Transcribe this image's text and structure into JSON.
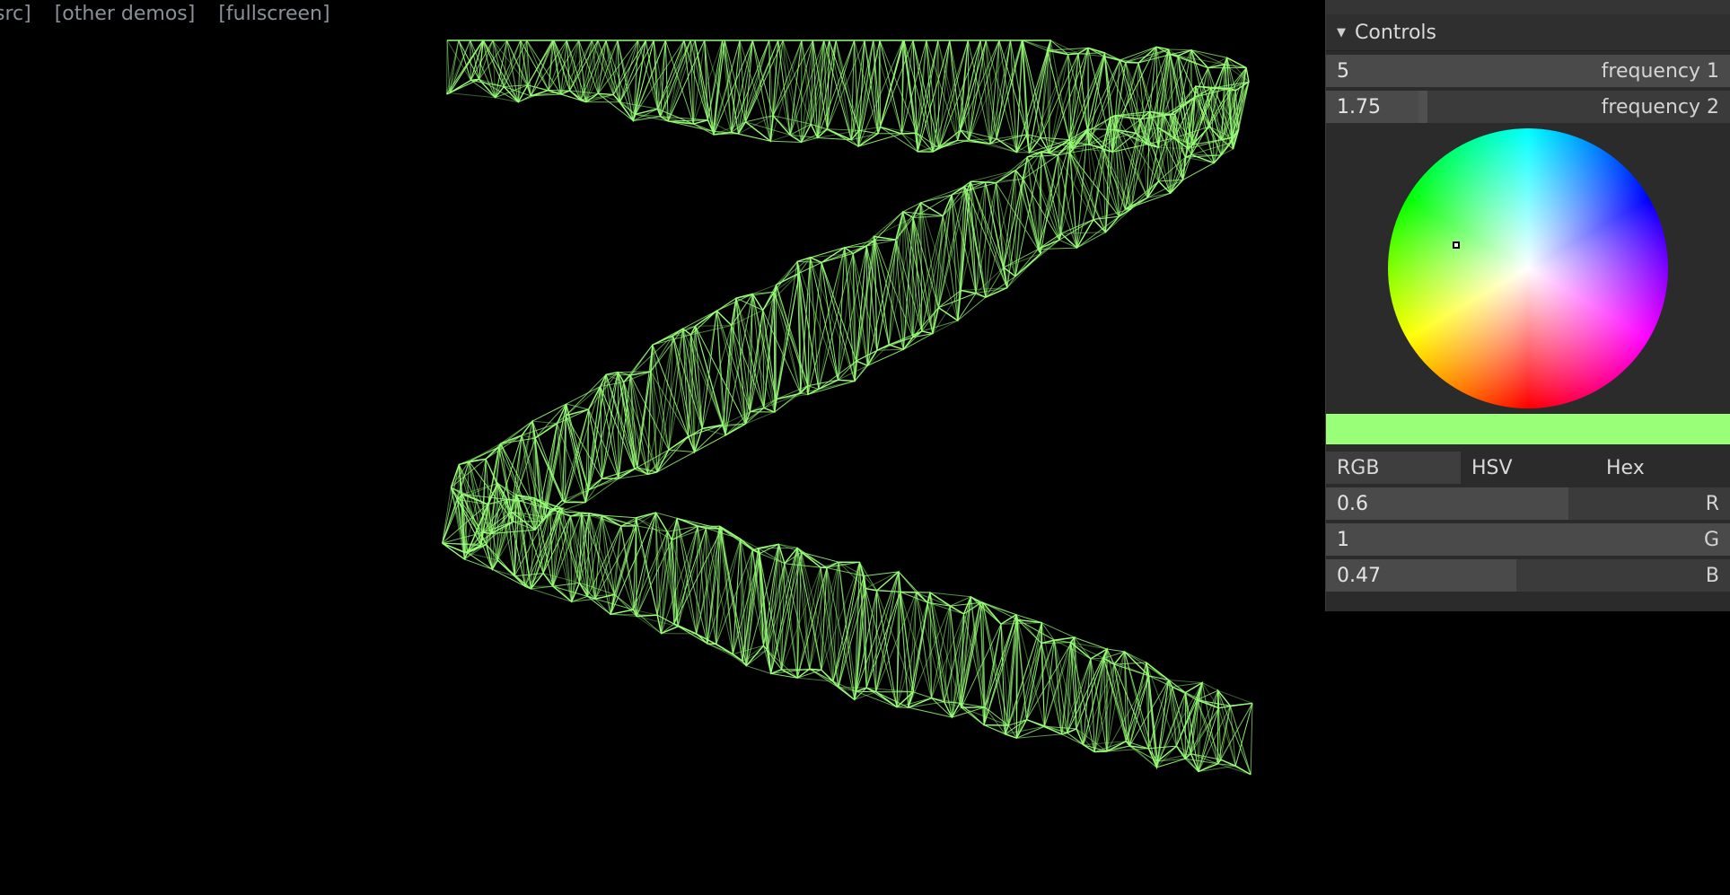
{
  "links": {
    "src": "src]",
    "other_demos": "[other demos]",
    "fullscreen": "[fullscreen]"
  },
  "scene": {
    "line_color": "#99ff78",
    "background": "#000000"
  },
  "controls": {
    "title": "Controls",
    "frequency1": {
      "label": "frequency 1",
      "value": "5",
      "fraction": 1.0
    },
    "frequency2": {
      "label": "frequency 2",
      "value": "1.75",
      "fraction": 0.24
    },
    "color": {
      "hex": "#99ff78",
      "tabs": [
        "RGB",
        "HSV",
        "Hex"
      ],
      "active_tab": "RGB",
      "r": {
        "label": "R",
        "value": "0.6",
        "fraction": 0.6
      },
      "g": {
        "label": "G",
        "value": "1",
        "fraction": 1.0
      },
      "b": {
        "label": "B",
        "value": "0.47",
        "fraction": 0.47
      }
    }
  }
}
